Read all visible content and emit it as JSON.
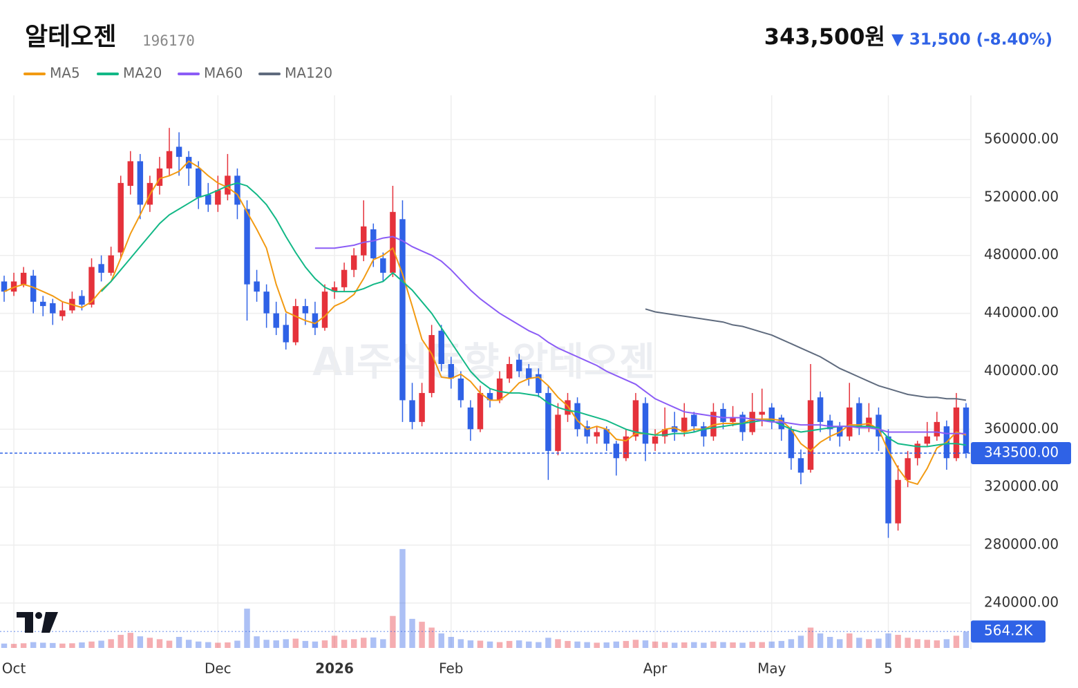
{
  "header": {
    "name": "알테오젠",
    "code": "196170",
    "price": "343,500원",
    "change": "▼ 31,500 (-8.40%)",
    "watermark": "AI주식동향 알테오젠"
  },
  "chart_data": {
    "type": "candlestick",
    "categories": [
      null,
      "Oct",
      null,
      null,
      null,
      null,
      null,
      null,
      null,
      null,
      null,
      null,
      null,
      null,
      null,
      null,
      null,
      null,
      null,
      null,
      null,
      null,
      "Dec",
      null,
      null,
      null,
      null,
      null,
      null,
      null,
      null,
      null,
      null,
      null,
      "2026",
      null,
      null,
      null,
      null,
      null,
      null,
      null,
      null,
      null,
      null,
      null,
      "Feb",
      null,
      null,
      null,
      null,
      null,
      null,
      null,
      null,
      null,
      null,
      null,
      null,
      null,
      null,
      null,
      null,
      null,
      null,
      null,
      null,
      "Apr",
      null,
      null,
      null,
      null,
      null,
      null,
      null,
      null,
      null,
      null,
      null,
      "May",
      null,
      null,
      null,
      null,
      null,
      null,
      null,
      null,
      null,
      null,
      null,
      "5",
      null,
      null,
      null,
      null,
      null,
      null,
      null,
      null
    ],
    "ohlc": [
      [
        462000,
        466000,
        448000,
        455000
      ],
      [
        455000,
        468000,
        452000,
        462000
      ],
      [
        460000,
        472000,
        458000,
        468000
      ],
      [
        466000,
        470000,
        440000,
        448000
      ],
      [
        448000,
        452000,
        438000,
        445000
      ],
      [
        447000,
        450000,
        432000,
        440000
      ],
      [
        438000,
        448000,
        435000,
        442000
      ],
      [
        442000,
        455000,
        440000,
        450000
      ],
      [
        452000,
        456000,
        442000,
        446000
      ],
      [
        446000,
        478000,
        444000,
        472000
      ],
      [
        474000,
        480000,
        462000,
        468000
      ],
      [
        468000,
        486000,
        466000,
        480000
      ],
      [
        482000,
        535000,
        478000,
        530000
      ],
      [
        528000,
        552000,
        522000,
        545000
      ],
      [
        545000,
        550000,
        505000,
        515000
      ],
      [
        515000,
        535000,
        510000,
        530000
      ],
      [
        528000,
        548000,
        522000,
        540000
      ],
      [
        540000,
        568000,
        535000,
        552000
      ],
      [
        555000,
        565000,
        535000,
        548000
      ],
      [
        548000,
        552000,
        528000,
        540000
      ],
      [
        540000,
        545000,
        512000,
        520000
      ],
      [
        522000,
        530000,
        510000,
        515000
      ],
      [
        515000,
        535000,
        510000,
        525000
      ],
      [
        522000,
        550000,
        518000,
        535000
      ],
      [
        535000,
        540000,
        505000,
        515000
      ],
      [
        512000,
        518000,
        435000,
        460000
      ],
      [
        462000,
        470000,
        448000,
        455000
      ],
      [
        455000,
        460000,
        430000,
        440000
      ],
      [
        440000,
        448000,
        425000,
        430000
      ],
      [
        432000,
        440000,
        415000,
        420000
      ],
      [
        420000,
        450000,
        418000,
        445000
      ],
      [
        445000,
        450000,
        432000,
        440000
      ],
      [
        440000,
        448000,
        425000,
        430000
      ],
      [
        430000,
        460000,
        428000,
        455000
      ],
      [
        455000,
        462000,
        450000,
        458000
      ],
      [
        458000,
        475000,
        455000,
        470000
      ],
      [
        470000,
        485000,
        465000,
        480000
      ],
      [
        480000,
        518000,
        476000,
        500000
      ],
      [
        498000,
        502000,
        472000,
        478000
      ],
      [
        478000,
        482000,
        462000,
        468000
      ],
      [
        468000,
        528000,
        465000,
        510000
      ],
      [
        505000,
        518000,
        365000,
        380000
      ],
      [
        380000,
        392000,
        360000,
        365000
      ],
      [
        365000,
        392000,
        362000,
        385000
      ],
      [
        385000,
        432000,
        382000,
        425000
      ],
      [
        428000,
        432000,
        400000,
        405000
      ],
      [
        405000,
        410000,
        388000,
        395000
      ],
      [
        395000,
        400000,
        375000,
        380000
      ],
      [
        375000,
        380000,
        352000,
        360000
      ],
      [
        360000,
        390000,
        358000,
        385000
      ],
      [
        385000,
        388000,
        375000,
        380000
      ],
      [
        380000,
        400000,
        378000,
        395000
      ],
      [
        395000,
        410000,
        392000,
        405000
      ],
      [
        408000,
        412000,
        396000,
        400000
      ],
      [
        402000,
        405000,
        390000,
        395000
      ],
      [
        398000,
        402000,
        382000,
        385000
      ],
      [
        385000,
        390000,
        325000,
        345000
      ],
      [
        345000,
        378000,
        342000,
        370000
      ],
      [
        370000,
        385000,
        365000,
        380000
      ],
      [
        378000,
        382000,
        355000,
        360000
      ],
      [
        362000,
        366000,
        350000,
        355000
      ],
      [
        355000,
        362000,
        350000,
        358000
      ],
      [
        360000,
        362000,
        345000,
        350000
      ],
      [
        350000,
        352000,
        328000,
        340000
      ],
      [
        340000,
        360000,
        338000,
        355000
      ],
      [
        355000,
        385000,
        352000,
        380000
      ],
      [
        378000,
        382000,
        338000,
        350000
      ],
      [
        350000,
        360000,
        345000,
        355000
      ],
      [
        355000,
        375000,
        350000,
        360000
      ],
      [
        362000,
        372000,
        352000,
        358000
      ],
      [
        358000,
        378000,
        355000,
        368000
      ],
      [
        370000,
        372000,
        358000,
        362000
      ],
      [
        362000,
        365000,
        348000,
        355000
      ],
      [
        355000,
        378000,
        352000,
        372000
      ],
      [
        374000,
        378000,
        360000,
        365000
      ],
      [
        365000,
        376000,
        362000,
        368000
      ],
      [
        370000,
        372000,
        352000,
        358000
      ],
      [
        358000,
        385000,
        356000,
        372000
      ],
      [
        370000,
        388000,
        362000,
        372000
      ],
      [
        375000,
        378000,
        360000,
        365000
      ],
      [
        368000,
        370000,
        352000,
        360000
      ],
      [
        360000,
        362000,
        332000,
        340000
      ],
      [
        340000,
        346000,
        322000,
        330000
      ],
      [
        332000,
        405000,
        330000,
        380000
      ],
      [
        382000,
        386000,
        358000,
        365000
      ],
      [
        366000,
        370000,
        352000,
        360000
      ],
      [
        362000,
        365000,
        348000,
        355000
      ],
      [
        355000,
        392000,
        352000,
        375000
      ],
      [
        378000,
        382000,
        356000,
        362000
      ],
      [
        362000,
        378000,
        358000,
        368000
      ],
      [
        370000,
        375000,
        345000,
        355000
      ],
      [
        355000,
        360000,
        285000,
        295000
      ],
      [
        295000,
        335000,
        290000,
        325000
      ],
      [
        325000,
        345000,
        320000,
        340000
      ],
      [
        340000,
        352000,
        335000,
        350000
      ],
      [
        350000,
        365000,
        348000,
        355000
      ],
      [
        355000,
        372000,
        352000,
        365000
      ],
      [
        362000,
        366000,
        332000,
        340000
      ],
      [
        340000,
        385000,
        338000,
        375000
      ],
      [
        375000,
        378000,
        340000,
        343500
      ]
    ],
    "volumes": [
      150000,
      140000,
      160000,
      200000,
      180000,
      170000,
      150000,
      160000,
      190000,
      220000,
      250000,
      300000,
      450000,
      520000,
      400000,
      350000,
      300000,
      250000,
      380000,
      280000,
      220000,
      200000,
      180000,
      190000,
      250000,
      1350000,
      400000,
      280000,
      260000,
      300000,
      320000,
      240000,
      220000,
      260000,
      420000,
      280000,
      300000,
      350000,
      360000,
      300000,
      1100000,
      3400000,
      1000000,
      900000,
      700000,
      500000,
      380000,
      300000,
      260000,
      250000,
      220000,
      200000,
      240000,
      260000,
      220000,
      200000,
      350000,
      300000,
      240000,
      220000,
      200000,
      180000,
      190000,
      220000,
      240000,
      280000,
      260000,
      220000,
      200000,
      180000,
      190000,
      200000,
      180000,
      220000,
      200000,
      190000,
      180000,
      210000,
      200000,
      220000,
      240000,
      300000,
      420000,
      700000,
      500000,
      380000,
      300000,
      500000,
      350000,
      300000,
      320000,
      500000,
      450000,
      350000,
      300000,
      280000,
      260000,
      300000,
      420000,
      564200
    ],
    "up_color": "#e5323b",
    "down_color": "#2f62e6",
    "series": [
      {
        "name": "MA5",
        "color": "#f29a12",
        "values": [
          455000,
          458000,
          460000,
          458000,
          455000,
          452000,
          448000,
          446000,
          444000,
          448000,
          456000,
          462000,
          478000,
          495000,
          508000,
          522000,
          533000,
          535000,
          538000,
          545000,
          541000,
          535000,
          530000,
          527000,
          522000,
          510000,
          498000,
          485000,
          460000,
          441000,
          438000,
          435000,
          433000,
          438000,
          445000,
          448000,
          453000,
          464000,
          477000,
          480000,
          485000,
          467000,
          445000,
          422000,
          412000,
          396000,
          395000,
          398000,
          393000,
          385000,
          380000,
          380000,
          385000,
          392000,
          395000,
          396000,
          390000,
          382000,
          376000,
          366000,
          360000,
          362000,
          360000,
          353000,
          352000,
          357000,
          357000,
          356000,
          360000,
          361000,
          358000,
          360000,
          360000,
          363000,
          364000,
          364000,
          364000,
          367000,
          367000,
          367000,
          366000,
          360000,
          350000,
          345000,
          351000,
          355000,
          358000,
          363000,
          363000,
          364000,
          360000,
          345000,
          333000,
          324000,
          322000,
          333000,
          347000,
          351000,
          358000,
          356000
        ]
      },
      {
        "name": "MA20",
        "color": "#12b886",
        "values": [
          null,
          null,
          null,
          null,
          null,
          null,
          null,
          null,
          null,
          null,
          455000,
          462000,
          470000,
          478000,
          486000,
          494000,
          502000,
          508000,
          512000,
          516000,
          520000,
          522000,
          525000,
          528000,
          530000,
          528000,
          522000,
          515000,
          505000,
          493000,
          482000,
          472000,
          464000,
          458000,
          455000,
          455000,
          455000,
          457000,
          460000,
          462000,
          468000,
          462000,
          456000,
          448000,
          440000,
          430000,
          420000,
          410000,
          400000,
          393000,
          388000,
          386000,
          385000,
          385000,
          384000,
          383000,
          378000,
          375000,
          373000,
          372000,
          370000,
          368000,
          366000,
          363000,
          360000,
          358000,
          357000,
          356000,
          356000,
          357000,
          357000,
          358000,
          360000,
          361000,
          362000,
          363000,
          364000,
          365000,
          366000,
          366000,
          363000,
          360000,
          358000,
          359000,
          360000,
          361000,
          362000,
          362000,
          362000,
          362000,
          361000,
          354000,
          350000,
          349000,
          348000,
          348000,
          349000,
          350000,
          350000,
          349000
        ]
      },
      {
        "name": "MA60",
        "color": "#8b5cf6",
        "values": [
          null,
          null,
          null,
          null,
          null,
          null,
          null,
          null,
          null,
          null,
          null,
          null,
          null,
          null,
          null,
          null,
          null,
          null,
          null,
          null,
          null,
          null,
          null,
          null,
          null,
          null,
          null,
          null,
          null,
          null,
          null,
          null,
          485000,
          485000,
          485000,
          486000,
          487000,
          489000,
          490000,
          492000,
          493000,
          490000,
          486000,
          483000,
          480000,
          476000,
          470000,
          463000,
          456000,
          450000,
          445000,
          440000,
          436000,
          432000,
          428000,
          425000,
          420000,
          416000,
          413000,
          410000,
          407000,
          404000,
          400000,
          397000,
          394000,
          391000,
          386000,
          381000,
          378000,
          375000,
          372000,
          371000,
          370000,
          369000,
          368000,
          368000,
          368000,
          367000,
          366000,
          365000,
          365000,
          364000,
          363000,
          363000,
          363000,
          362000,
          362000,
          362000,
          361000,
          361000,
          360000,
          358000,
          358000,
          358000,
          358000,
          358000,
          358000,
          357000,
          357000,
          357000
        ]
      },
      {
        "name": "MA120",
        "color": "#5f6b7e",
        "values": [
          null,
          null,
          null,
          null,
          null,
          null,
          null,
          null,
          null,
          null,
          null,
          null,
          null,
          null,
          null,
          null,
          null,
          null,
          null,
          null,
          null,
          null,
          null,
          null,
          null,
          null,
          null,
          null,
          null,
          null,
          null,
          null,
          null,
          null,
          null,
          null,
          null,
          null,
          null,
          null,
          null,
          null,
          null,
          null,
          null,
          null,
          null,
          null,
          null,
          null,
          null,
          null,
          null,
          null,
          null,
          null,
          null,
          null,
          null,
          null,
          null,
          null,
          null,
          null,
          null,
          null,
          443000,
          441000,
          440000,
          439000,
          438000,
          437000,
          436000,
          435000,
          434000,
          432000,
          431000,
          429000,
          427000,
          425000,
          422000,
          419000,
          416000,
          413000,
          410000,
          406000,
          402000,
          399000,
          396000,
          393000,
          390000,
          388000,
          386000,
          384000,
          383000,
          382000,
          382000,
          381000,
          381000,
          380000
        ]
      }
    ],
    "ylim": [
      209000,
      590500
    ],
    "yticks": [
      {
        "value": 240000,
        "label": "240000.00"
      },
      {
        "value": 280000,
        "label": "280000.00"
      },
      {
        "value": 320000,
        "label": "320000.00"
      },
      {
        "value": 360000,
        "label": "360000.00"
      },
      {
        "value": 400000,
        "label": "400000.00"
      },
      {
        "value": 440000,
        "label": "440000.00"
      },
      {
        "value": 480000,
        "label": "480000.00"
      },
      {
        "value": 520000,
        "label": "520000.00"
      },
      {
        "value": 560000,
        "label": "560000.00"
      }
    ],
    "vlim": [
      0,
      3800000
    ],
    "last_price_label": "343500.00",
    "last_volume_label": "564.2K",
    "grid": true
  }
}
